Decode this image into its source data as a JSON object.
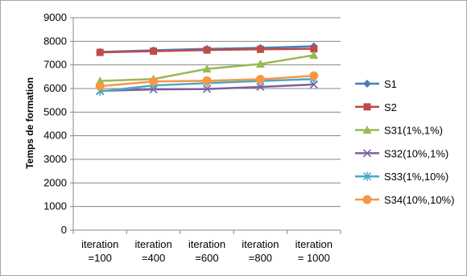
{
  "chart_data": {
    "type": "line",
    "ylabel": "Temps de formation",
    "ylim": [
      0,
      9000
    ],
    "yticks": [
      0,
      1000,
      2000,
      3000,
      4000,
      5000,
      6000,
      7000,
      8000,
      9000
    ],
    "categories": [
      [
        "iteration",
        "=100"
      ],
      [
        "iteration",
        "=400"
      ],
      [
        "iteration",
        "=600"
      ],
      [
        "iteration",
        "=800"
      ],
      [
        "iteration",
        "= 1000"
      ]
    ],
    "grid": true,
    "legend_position": "right",
    "series": [
      {
        "name": "S1",
        "color": "#4a7ebb",
        "marker": "diamond",
        "values": [
          7550,
          7620,
          7680,
          7720,
          7790
        ]
      },
      {
        "name": "S2",
        "color": "#be4b48",
        "marker": "square",
        "values": [
          7530,
          7580,
          7630,
          7660,
          7680
        ]
      },
      {
        "name": "S31(1%,1%)",
        "color": "#98b954",
        "marker": "triangle",
        "values": [
          6320,
          6400,
          6830,
          7040,
          7410
        ]
      },
      {
        "name": "S32(10%,1%)",
        "color": "#7d60a0",
        "marker": "x",
        "values": [
          5900,
          5960,
          5980,
          6070,
          6170
        ]
      },
      {
        "name": "S33(1%,10%)",
        "color": "#46aac5",
        "marker": "star",
        "values": [
          5880,
          6130,
          6230,
          6320,
          6400
        ]
      },
      {
        "name": "S34(10%,10%)",
        "color": "#f79646",
        "marker": "circle",
        "values": [
          6100,
          6300,
          6330,
          6390,
          6540
        ]
      }
    ]
  }
}
